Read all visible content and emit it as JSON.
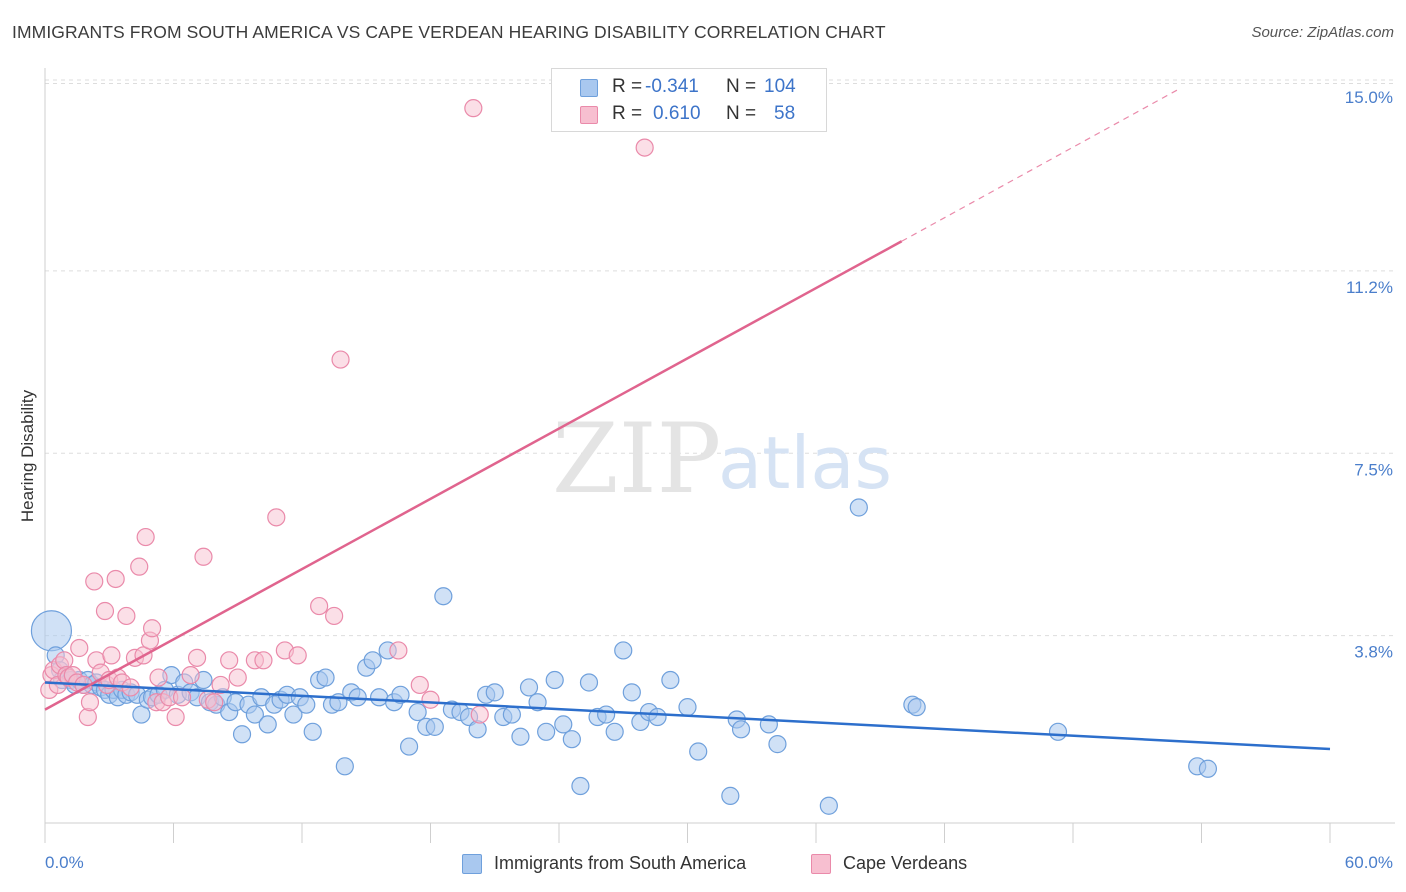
{
  "header": {
    "title": "IMMIGRANTS FROM SOUTH AMERICA VS CAPE VERDEAN HEARING DISABILITY CORRELATION CHART",
    "source": "Source: ZipAtlas.com"
  },
  "watermark": {
    "zip": "ZIP",
    "atlas": "atlas"
  },
  "legend": {
    "rows": [
      {
        "r_label": "R =",
        "r_value": "-0.341",
        "n_label": "N =",
        "n_value": "104"
      },
      {
        "r_label": "R =",
        "r_value": "0.610",
        "n_label": "N =",
        "n_value": "58"
      }
    ]
  },
  "bottom_legend": {
    "series1": "Immigrants from South America",
    "series2": "Cape Verdeans"
  },
  "colors": {
    "blue_fill": "#a9c8ef",
    "blue_stroke": "#6fa0dc",
    "blue_line": "#2d6fcc",
    "pink_fill": "#f7bfd0",
    "pink_stroke": "#ea8aaa",
    "pink_line": "#e0648e",
    "tick_text": "#4a7ecb",
    "grid": "#dddddd"
  },
  "chart_data": {
    "type": "scatter",
    "title": "IMMIGRANTS FROM SOUTH AMERICA VS CAPE VERDEAN HEARING DISABILITY CORRELATION CHART",
    "xlabel": "",
    "ylabel": "Hearing Disability",
    "xlim": [
      0,
      60
    ],
    "ylim": [
      0,
      15.5
    ],
    "x_ticks": [
      "0.0%",
      "60.0%"
    ],
    "y_ticks": [
      {
        "value": 3.8,
        "label": "3.8%"
      },
      {
        "value": 7.5,
        "label": "7.5%"
      },
      {
        "value": 11.2,
        "label": "11.2%"
      },
      {
        "value": 15.0,
        "label": "15.0%"
      }
    ],
    "grid": true,
    "legend_position": "top-center",
    "series": [
      {
        "name": "Immigrants from South America",
        "r": -0.341,
        "n": 104,
        "trend": {
          "x0": 0,
          "y0": 2.85,
          "x1": 60,
          "y1": 1.5
        },
        "points": [
          [
            0.3,
            3.9
          ],
          [
            0.5,
            3.4
          ],
          [
            0.7,
            3.1
          ],
          [
            0.8,
            2.9
          ],
          [
            1.0,
            3.0
          ],
          [
            1.2,
            2.9
          ],
          [
            1.4,
            2.8
          ],
          [
            1.6,
            2.9
          ],
          [
            1.8,
            2.8
          ],
          [
            2.0,
            2.9
          ],
          [
            2.2,
            2.8
          ],
          [
            2.4,
            2.85
          ],
          [
            2.6,
            2.75
          ],
          [
            2.8,
            2.7
          ],
          [
            3.0,
            2.6
          ],
          [
            3.2,
            2.7
          ],
          [
            3.4,
            2.55
          ],
          [
            3.6,
            2.7
          ],
          [
            3.8,
            2.6
          ],
          [
            4.0,
            2.65
          ],
          [
            4.3,
            2.6
          ],
          [
            4.5,
            2.2
          ],
          [
            4.8,
            2.5
          ],
          [
            5.0,
            2.55
          ],
          [
            5.3,
            2.6
          ],
          [
            5.6,
            2.7
          ],
          [
            5.9,
            3.0
          ],
          [
            6.2,
            2.6
          ],
          [
            6.5,
            2.85
          ],
          [
            6.8,
            2.65
          ],
          [
            7.1,
            2.55
          ],
          [
            7.4,
            2.9
          ],
          [
            7.7,
            2.45
          ],
          [
            8.0,
            2.4
          ],
          [
            8.3,
            2.55
          ],
          [
            8.6,
            2.25
          ],
          [
            8.9,
            2.45
          ],
          [
            9.2,
            1.8
          ],
          [
            9.5,
            2.4
          ],
          [
            9.8,
            2.2
          ],
          [
            10.1,
            2.55
          ],
          [
            10.4,
            2.0
          ],
          [
            10.7,
            2.4
          ],
          [
            11.0,
            2.5
          ],
          [
            11.3,
            2.6
          ],
          [
            11.6,
            2.2
          ],
          [
            11.9,
            2.55
          ],
          [
            12.2,
            2.4
          ],
          [
            12.5,
            1.85
          ],
          [
            12.8,
            2.9
          ],
          [
            13.1,
            2.95
          ],
          [
            13.4,
            2.4
          ],
          [
            13.7,
            2.45
          ],
          [
            14.0,
            1.15
          ],
          [
            14.3,
            2.65
          ],
          [
            14.6,
            2.55
          ],
          [
            15.0,
            3.15
          ],
          [
            15.3,
            3.3
          ],
          [
            15.6,
            2.55
          ],
          [
            16.0,
            3.5
          ],
          [
            16.3,
            2.45
          ],
          [
            16.6,
            2.6
          ],
          [
            17.0,
            1.55
          ],
          [
            17.4,
            2.25
          ],
          [
            17.8,
            1.95
          ],
          [
            18.2,
            1.95
          ],
          [
            18.6,
            4.6
          ],
          [
            19.0,
            2.3
          ],
          [
            19.4,
            2.25
          ],
          [
            19.8,
            2.15
          ],
          [
            20.2,
            1.9
          ],
          [
            20.6,
            2.6
          ],
          [
            21.0,
            2.65
          ],
          [
            21.4,
            2.15
          ],
          [
            21.8,
            2.2
          ],
          [
            22.2,
            1.75
          ],
          [
            22.6,
            2.75
          ],
          [
            23.0,
            2.45
          ],
          [
            23.4,
            1.85
          ],
          [
            23.8,
            2.9
          ],
          [
            24.2,
            2.0
          ],
          [
            24.6,
            1.7
          ],
          [
            25.0,
            0.75
          ],
          [
            25.4,
            2.85
          ],
          [
            25.8,
            2.15
          ],
          [
            26.2,
            2.2
          ],
          [
            26.6,
            1.85
          ],
          [
            27.0,
            3.5
          ],
          [
            27.4,
            2.65
          ],
          [
            27.8,
            2.05
          ],
          [
            28.2,
            2.25
          ],
          [
            28.6,
            2.15
          ],
          [
            29.2,
            2.9
          ],
          [
            30.0,
            2.35
          ],
          [
            30.5,
            1.45
          ],
          [
            32.0,
            0.55
          ],
          [
            32.3,
            2.1
          ],
          [
            32.5,
            1.9
          ],
          [
            33.8,
            2.0
          ],
          [
            34.2,
            1.6
          ],
          [
            36.6,
            0.35
          ],
          [
            38.0,
            6.4
          ],
          [
            40.5,
            2.4
          ],
          [
            40.7,
            2.35
          ],
          [
            47.3,
            1.85
          ],
          [
            53.8,
            1.15
          ],
          [
            54.3,
            1.1
          ]
        ]
      },
      {
        "name": "Cape Verdeans",
        "r": 0.61,
        "n": 58,
        "trend": {
          "x0": 0,
          "y0": 2.3,
          "x1": 40,
          "y1": 11.8
        },
        "trend_dashed": {
          "x0": 40,
          "y0": 11.8,
          "x1": 53,
          "y1": 14.9
        },
        "points": [
          [
            0.2,
            2.7
          ],
          [
            0.3,
            3.0
          ],
          [
            0.4,
            3.1
          ],
          [
            0.6,
            2.8
          ],
          [
            0.7,
            3.2
          ],
          [
            0.9,
            3.3
          ],
          [
            1.0,
            3.0
          ],
          [
            1.1,
            2.95
          ],
          [
            1.3,
            3.0
          ],
          [
            1.5,
            2.85
          ],
          [
            1.6,
            3.55
          ],
          [
            1.8,
            2.8
          ],
          [
            2.0,
            2.15
          ],
          [
            2.1,
            2.45
          ],
          [
            2.3,
            4.9
          ],
          [
            2.4,
            3.3
          ],
          [
            2.6,
            3.05
          ],
          [
            2.8,
            4.3
          ],
          [
            2.9,
            2.8
          ],
          [
            3.0,
            2.9
          ],
          [
            3.1,
            3.4
          ],
          [
            3.3,
            4.95
          ],
          [
            3.4,
            2.95
          ],
          [
            3.6,
            2.85
          ],
          [
            3.8,
            4.2
          ],
          [
            4.0,
            2.75
          ],
          [
            4.2,
            3.35
          ],
          [
            4.4,
            5.2
          ],
          [
            4.6,
            3.4
          ],
          [
            4.7,
            5.8
          ],
          [
            4.9,
            3.7
          ],
          [
            5.0,
            3.95
          ],
          [
            5.2,
            2.45
          ],
          [
            5.3,
            2.95
          ],
          [
            5.5,
            2.45
          ],
          [
            5.8,
            2.55
          ],
          [
            6.1,
            2.15
          ],
          [
            6.4,
            2.55
          ],
          [
            6.8,
            3.0
          ],
          [
            7.1,
            3.35
          ],
          [
            7.4,
            5.4
          ],
          [
            7.6,
            2.5
          ],
          [
            7.9,
            2.45
          ],
          [
            8.2,
            2.8
          ],
          [
            8.6,
            3.3
          ],
          [
            9.0,
            2.95
          ],
          [
            9.8,
            3.3
          ],
          [
            10.2,
            3.3
          ],
          [
            10.8,
            6.2
          ],
          [
            11.2,
            3.5
          ],
          [
            11.8,
            3.4
          ],
          [
            12.8,
            4.4
          ],
          [
            13.5,
            4.2
          ],
          [
            13.8,
            9.4
          ],
          [
            16.5,
            3.5
          ],
          [
            17.5,
            2.8
          ],
          [
            18.0,
            2.5
          ],
          [
            20.0,
            14.5
          ],
          [
            20.3,
            2.2
          ],
          [
            28.0,
            13.7
          ]
        ]
      }
    ]
  }
}
